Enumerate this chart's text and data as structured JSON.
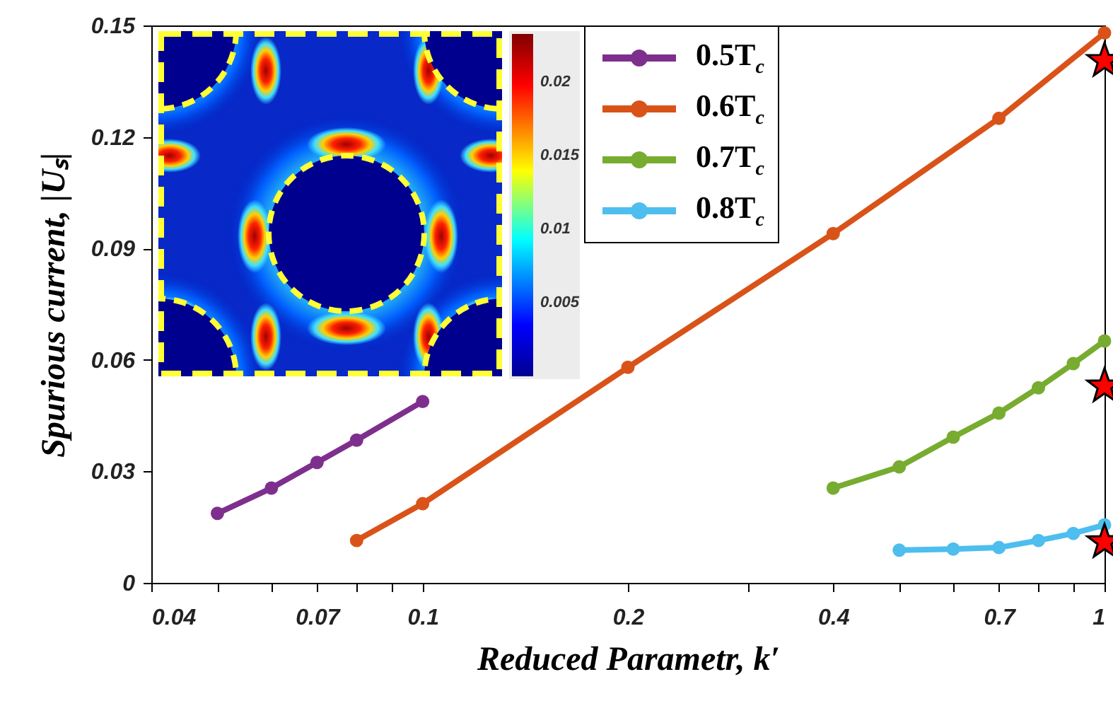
{
  "chart_data": {
    "type": "line",
    "xlabel": "Reduced Parametr, k′",
    "ylabel": "Spurious current, |Uₛ|",
    "log": "x",
    "xlim": [
      0.04,
      1
    ],
    "xticks": [
      0.04,
      {
        "value": 0.05,
        "label": null
      },
      {
        "value": 0.06,
        "label": null
      },
      0.07,
      {
        "value": 0.08,
        "label": null
      },
      {
        "value": 0.09,
        "label": null
      },
      0.1,
      0.2,
      {
        "value": 0.3,
        "label": null
      },
      0.4,
      {
        "value": 0.5,
        "label": null
      },
      {
        "value": 0.6,
        "label": null
      },
      0.7,
      {
        "value": 0.8,
        "label": null
      },
      {
        "value": 0.9,
        "label": null
      },
      1
    ],
    "ylim": [
      0,
      0.15
    ],
    "yticks": [
      0,
      0.03,
      0.06,
      0.09,
      0.12,
      0.15
    ],
    "grid": false,
    "legend": "top right",
    "marker": "circle",
    "series": [
      {
        "name": "0.5T$_{c}$",
        "color": "#7e2f8e",
        "x": [
          0.05,
          0.06,
          0.07,
          0.08,
          0.1
        ],
        "values": [
          0.0187,
          0.0255,
          0.0324,
          0.0384,
          0.0488
        ]
      },
      {
        "name": "0.6T$_{c}$",
        "color": "#d95319",
        "x": [
          0.08,
          0.1,
          0.2,
          0.4,
          0.7,
          1
        ],
        "values": [
          0.0114,
          0.0213,
          0.058,
          0.094,
          0.125,
          0.148
        ]
      },
      {
        "name": "0.7T$_{c}$",
        "color": "#77ac30",
        "x": [
          0.4,
          0.5,
          0.6,
          0.7,
          0.8,
          0.9,
          1
        ],
        "values": [
          0.0255,
          0.0312,
          0.0392,
          0.0457,
          0.0525,
          0.059,
          0.0651
        ]
      },
      {
        "name": "0.8T$_{c}$",
        "color": "#4dbeee",
        "x": [
          0.5,
          0.6,
          0.7,
          0.8,
          0.9,
          1
        ],
        "values": [
          0.0088,
          0.0091,
          0.0095,
          0.0114,
          0.0133,
          0.0156
        ]
      },
      {
        "type": "scatter",
        "marker": "star",
        "color": "#ff0000",
        "x": [
          1,
          1,
          1
        ],
        "values": [
          0.1405,
          0.0529,
          0.011
        ]
      }
    ],
    "annotations": [
      "0.02",
      "0.015",
      "0.01",
      "0.005"
    ]
  }
}
